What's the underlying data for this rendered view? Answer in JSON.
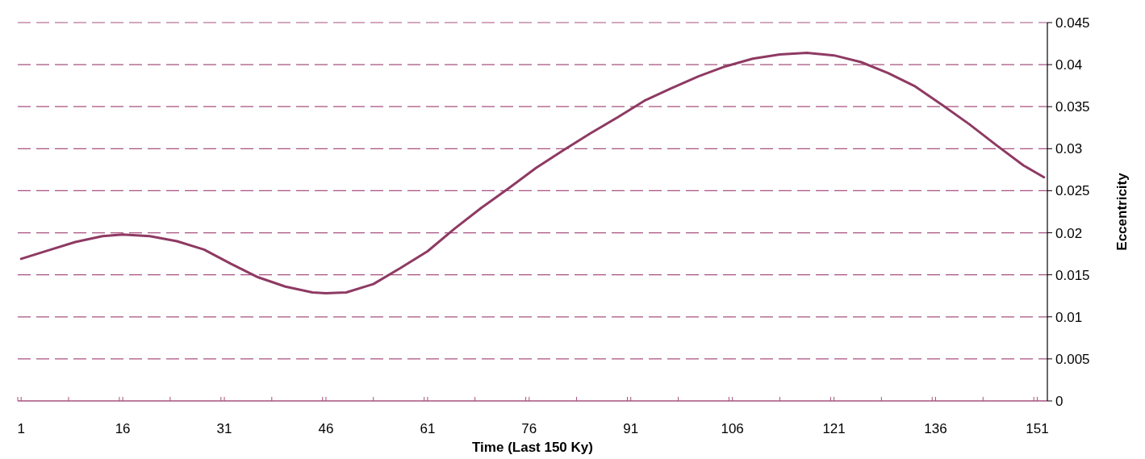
{
  "chart_data": {
    "type": "line",
    "xlabel": "Time (Last 150 Ky)",
    "ylabel": "Eccentricity",
    "xlim": [
      0.5,
      152.5
    ],
    "xticks": [
      {
        "value": 0.5,
        "label": null
      },
      1,
      {
        "value": 8,
        "label": null
      },
      {
        "value": 15.5,
        "label": null
      },
      16,
      {
        "value": 23,
        "label": null
      },
      {
        "value": 30.5,
        "label": null
      },
      31,
      {
        "value": 38,
        "label": null
      },
      {
        "value": 45.5,
        "label": null
      },
      46,
      {
        "value": 53,
        "label": null
      },
      {
        "value": 60.5,
        "label": null
      },
      61,
      {
        "value": 68,
        "label": null
      },
      {
        "value": 75.5,
        "label": null
      },
      76,
      {
        "value": 83,
        "label": null
      },
      {
        "value": 90.5,
        "label": null
      },
      91,
      {
        "value": 98,
        "label": null
      },
      {
        "value": 105.5,
        "label": null
      },
      106,
      {
        "value": 113,
        "label": null
      },
      {
        "value": 120.5,
        "label": null
      },
      121,
      {
        "value": 128,
        "label": null
      },
      {
        "value": 135.5,
        "label": null
      },
      136,
      {
        "value": 143,
        "label": null
      },
      {
        "value": 150.5,
        "label": null
      },
      151
    ],
    "ylim": [
      0,
      0.045
    ],
    "yticks": [
      0,
      0.005,
      0.01,
      0.015,
      0.02,
      0.025,
      0.03,
      0.035,
      0.04,
      0.045
    ],
    "grid": "y",
    "line_style": "solid",
    "marker": "none",
    "series": [
      {
        "color": "#8e3a63",
        "x": [
          1,
          5,
          9,
          13,
          16,
          20,
          24,
          28,
          32,
          36,
          40,
          44,
          46,
          49,
          53,
          57,
          61,
          65,
          69,
          73,
          77,
          81,
          85,
          89,
          93,
          97,
          101,
          105,
          109,
          113,
          117,
          121,
          125,
          129,
          133,
          137,
          141,
          145,
          149,
          152
        ],
        "values": [
          0.0169,
          0.0179,
          0.0189,
          0.0196,
          0.0198,
          0.0196,
          0.019,
          0.018,
          0.0163,
          0.0147,
          0.0136,
          0.0129,
          0.0128,
          0.0129,
          0.0139,
          0.0158,
          0.0178,
          0.0205,
          0.023,
          0.0253,
          0.0277,
          0.0298,
          0.0318,
          0.0337,
          0.0357,
          0.0372,
          0.0386,
          0.0398,
          0.0407,
          0.0412,
          0.0414,
          0.0411,
          0.0403,
          0.039,
          0.0374,
          0.0352,
          0.0329,
          0.0304,
          0.028,
          0.0266
        ]
      }
    ]
  }
}
